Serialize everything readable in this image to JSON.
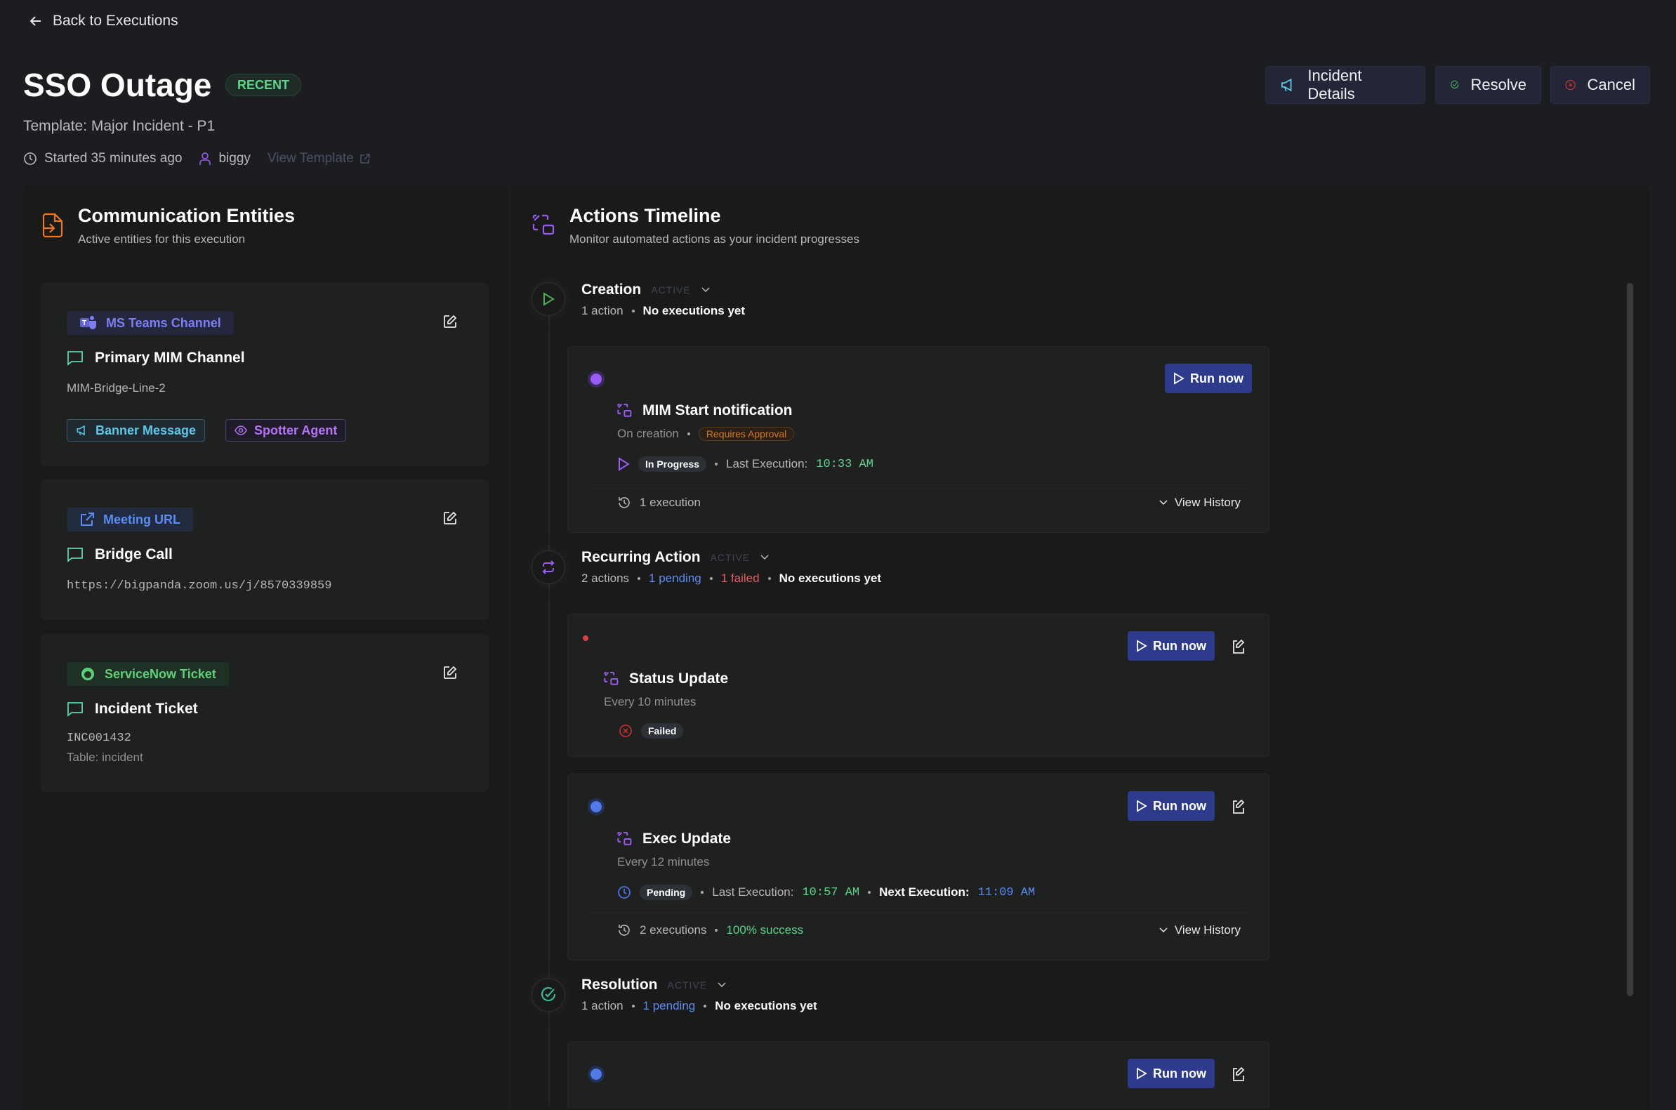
{
  "header": {
    "back_label": "Back to Executions",
    "title": "SSO Outage",
    "badge": "RECENT",
    "template": "Template: Major Incident - P1",
    "started": "Started 35 minutes ago",
    "user": "biggy",
    "view_template": "View Template",
    "buttons": {
      "incident_details": "Incident Details",
      "resolve": "Resolve",
      "cancel": "Cancel"
    }
  },
  "entities": {
    "title": "Communication Entities",
    "subtitle": "Active entities for this execution",
    "items": [
      {
        "type": "MS Teams Channel",
        "name": "Primary MIM Channel",
        "detail": "MIM-Bridge-Line-2",
        "chips": [
          "Banner Message",
          "Spotter Agent"
        ]
      },
      {
        "type": "Meeting URL",
        "name": "Bridge Call",
        "detail": "https://bigpanda.zoom.us/j/8570339859"
      },
      {
        "type": "ServiceNow Ticket",
        "name": "Incident Ticket",
        "detail": "INC001432",
        "detail2": "Table: incident"
      }
    ]
  },
  "timeline": {
    "title": "Actions Timeline",
    "subtitle": "Monitor automated actions as your incident progresses",
    "run_label": "Run now",
    "view_history": "View History",
    "stages": [
      {
        "name": "Creation",
        "state": "ACTIVE",
        "actions": "1 action",
        "summary": "No executions yet"
      },
      {
        "name": "Recurring Action",
        "state": "ACTIVE",
        "actions": "2 actions",
        "pending": "1 pending",
        "failed": "1 failed",
        "summary": "No executions yet"
      },
      {
        "name": "Resolution",
        "state": "ACTIVE",
        "actions": "1 action",
        "pending": "1 pending",
        "summary": "No executions yet"
      }
    ],
    "actions": [
      {
        "name": "MIM Start notification",
        "trigger": "On creation",
        "tag": "Requires Approval",
        "status": "In Progress",
        "last_label": "Last Execution:",
        "last_time": "10:33 AM",
        "executions": "1 execution"
      },
      {
        "name": "Status Update",
        "trigger": "Every 10 minutes",
        "status": "Failed"
      },
      {
        "name": "Exec Update",
        "trigger": "Every 12 minutes",
        "status": "Pending",
        "last_label": "Last Execution:",
        "last_time": "10:57 AM",
        "next_label": "Next Execution:",
        "next_time": "11:09 AM",
        "executions": "2 executions",
        "success": "100% success"
      }
    ]
  },
  "colors": {
    "accent": "#2e3a8c",
    "success": "#5fd38b",
    "danger": "#e04040",
    "info": "#5b8def",
    "purple": "#9b5cf6"
  }
}
